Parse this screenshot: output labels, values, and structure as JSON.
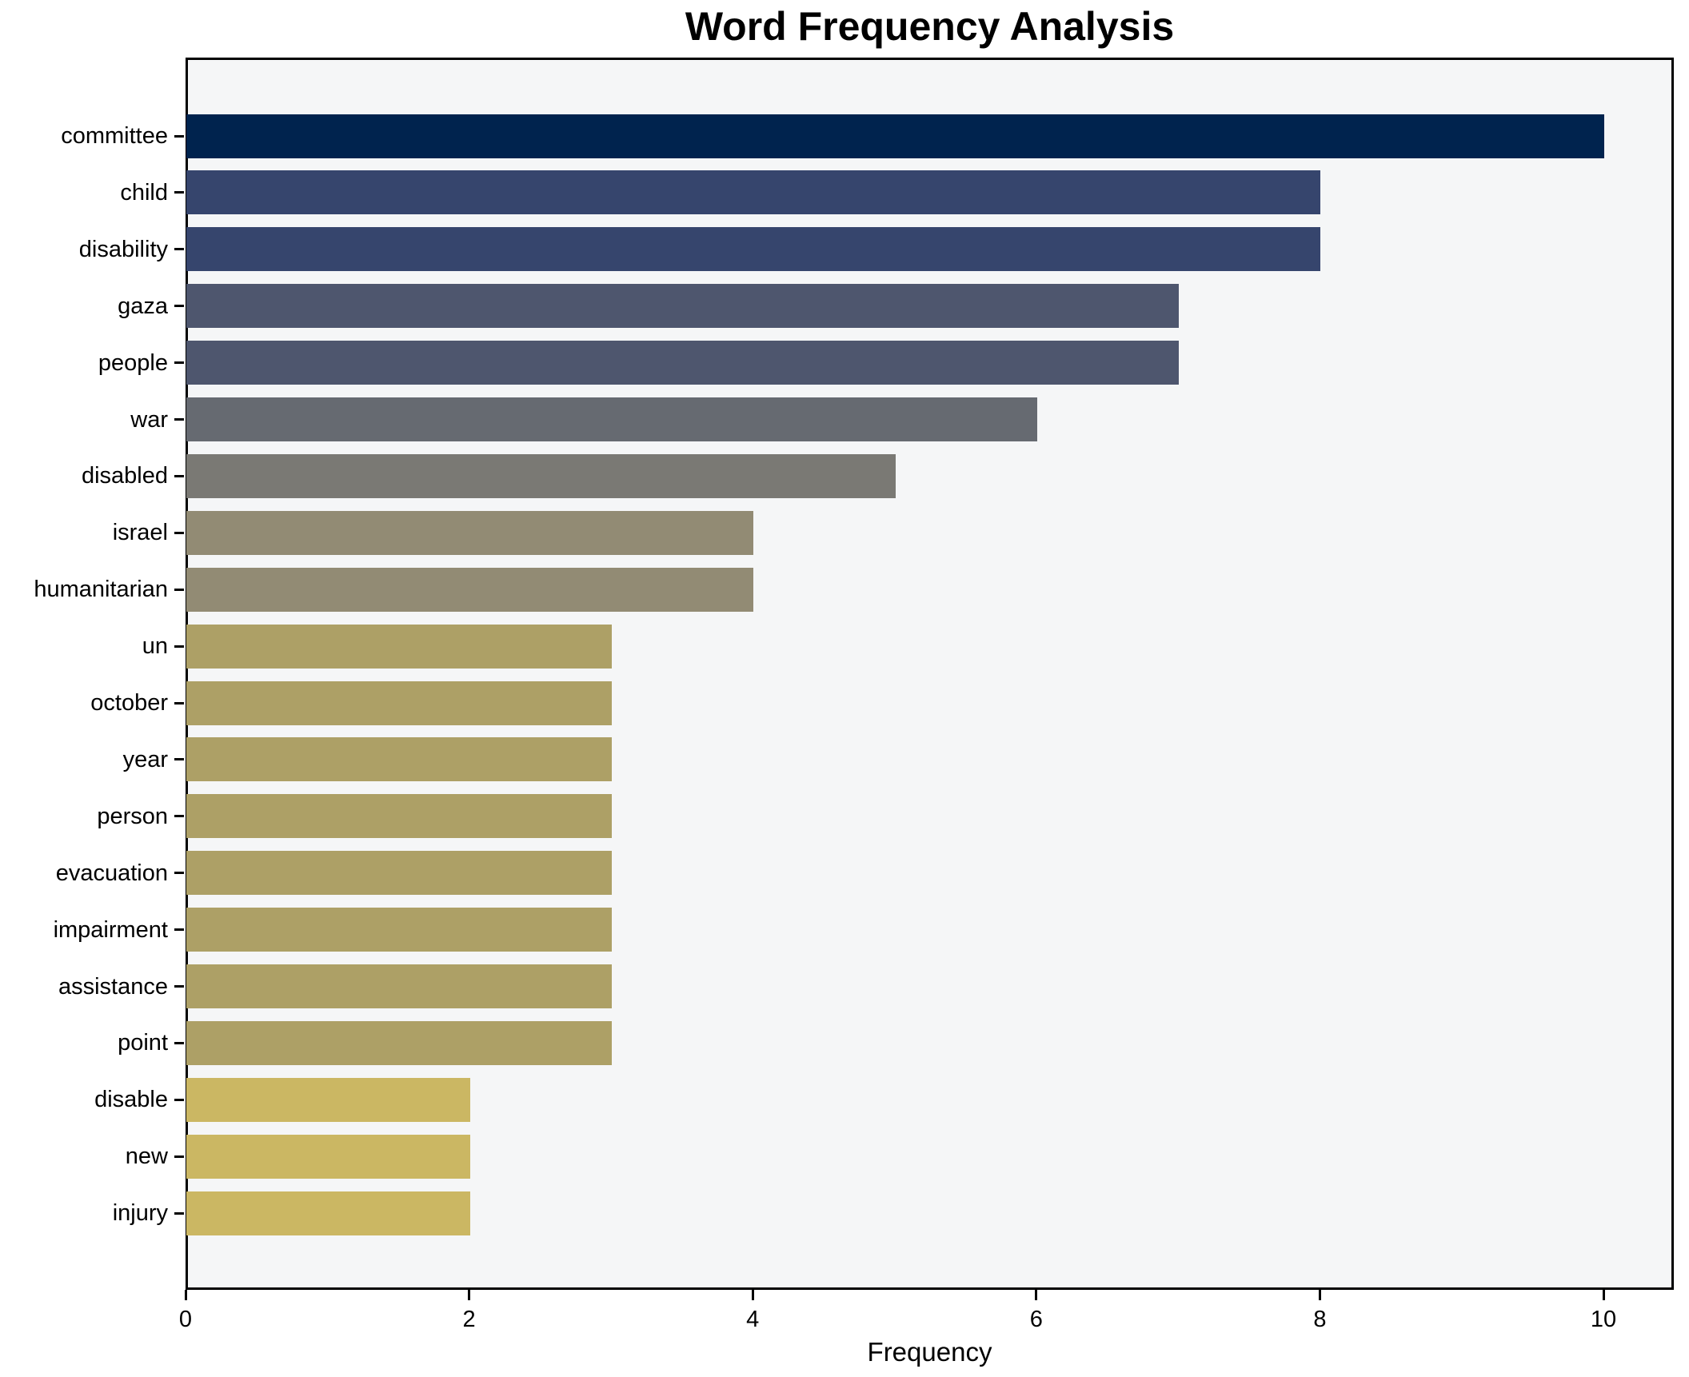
{
  "figure": {
    "background_color": "#ffffff",
    "plot_background_color": "#f5f6f7",
    "spine_color": "#000000",
    "text_color": "#000000"
  },
  "chart_data": {
    "type": "bar",
    "orientation": "horizontal",
    "title": "Word Frequency Analysis",
    "xlabel": "Frequency",
    "ylabel": "",
    "categories": [
      "committee",
      "child",
      "disability",
      "gaza",
      "people",
      "war",
      "disabled",
      "israel",
      "humanitarian",
      "un",
      "october",
      "year",
      "person",
      "evacuation",
      "impairment",
      "assistance",
      "point",
      "disable",
      "new",
      "injury"
    ],
    "values": [
      10,
      8,
      8,
      7,
      7,
      6,
      5,
      4,
      4,
      3,
      3,
      3,
      3,
      3,
      3,
      3,
      3,
      2,
      2,
      2
    ],
    "bar_colors": [
      "#00234e",
      "#36456d",
      "#36456d",
      "#4e566e",
      "#4e566e",
      "#666a71",
      "#7a7974",
      "#928b74",
      "#928b74",
      "#ada066",
      "#ada066",
      "#ada066",
      "#ada066",
      "#ada066",
      "#ada066",
      "#ada066",
      "#ada066",
      "#cbb763",
      "#cbb763",
      "#cbb763"
    ],
    "xlim": [
      0,
      10.5
    ],
    "xticks": [
      0,
      2,
      4,
      6,
      8,
      10
    ],
    "grid": false,
    "legend": false
  }
}
